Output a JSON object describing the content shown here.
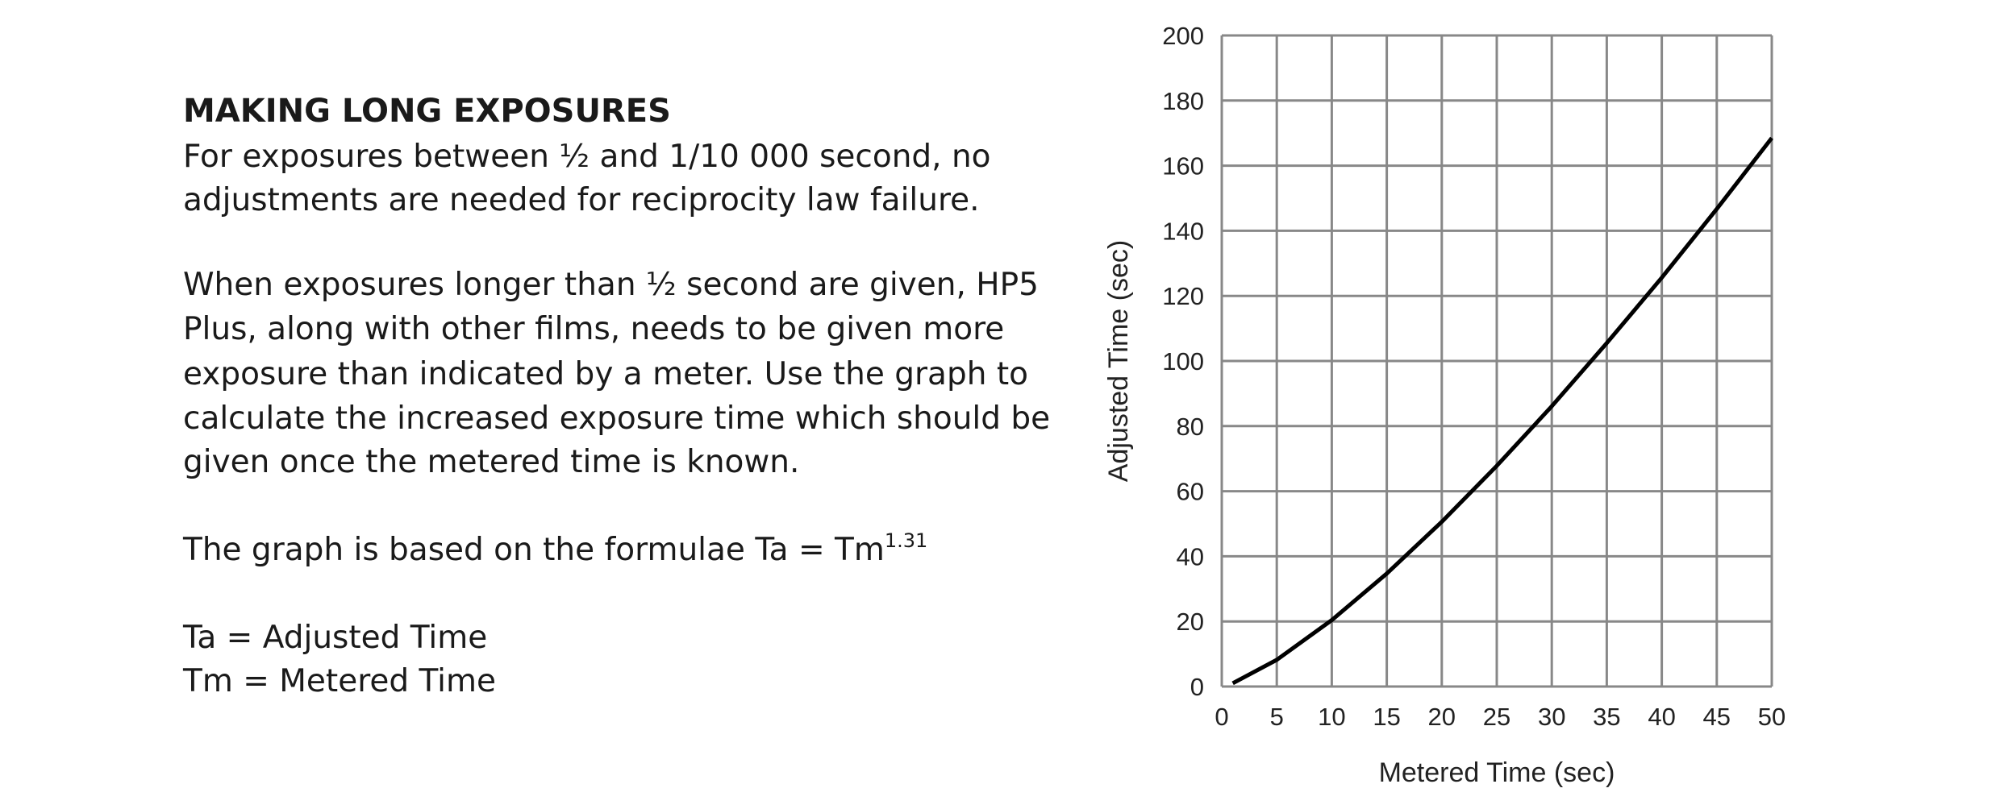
{
  "text": {
    "heading": "MAKING LONG EXPOSURES",
    "paragraphs": [
      [
        "For exposures between ½ and 1/10 000 second, no",
        "adjustments are needed for reciprocity law failure."
      ],
      [
        "When exposures longer than ½ second are given, HP5",
        "Plus, along with other films, needs to be given more",
        "exposure than indicated by a meter. Use the graph to",
        "calculate the increased exposure time which should be",
        "given once the metered time is known."
      ]
    ],
    "formula": {
      "text": "The graph is based on the formulae Ta = Tm",
      "superscript": "1.31"
    },
    "definitions": [
      "Ta = Adjusted Time",
      "Tm = Metered Time"
    ]
  },
  "chart_data": {
    "type": "line",
    "x_label": "Metered Time (sec)",
    "y_label": "Adjusted Time (sec)",
    "x": [
      1,
      5,
      10,
      15,
      20,
      25,
      30,
      35,
      40,
      45,
      50
    ],
    "values": [
      1,
      8.2,
      20.4,
      34.7,
      50.6,
      67.8,
      86.1,
      105.5,
      125.6,
      146.7,
      168.5
    ],
    "color": "#000000",
    "xlim": [
      0,
      50
    ],
    "xticks": [
      0,
      5,
      10,
      15,
      20,
      25,
      30,
      35,
      40,
      45,
      50
    ],
    "ylim": [
      0,
      200
    ],
    "yticks": [
      0,
      20,
      40,
      60,
      80,
      100,
      120,
      140,
      160,
      180,
      200
    ],
    "grid": true
  }
}
